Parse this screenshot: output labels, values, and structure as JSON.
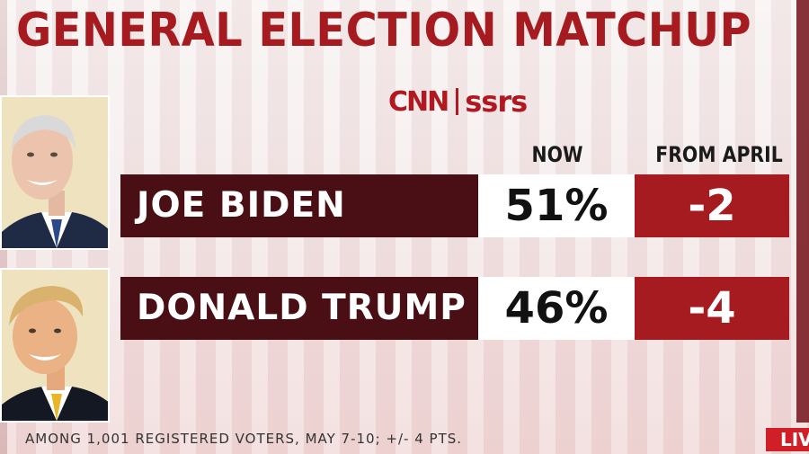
{
  "header": {
    "title": "GENERAL ELECTION MATCHUP"
  },
  "logo": {
    "left": "CNN",
    "right": "ssrs"
  },
  "columns": {
    "now": "NOW",
    "from": "FROM APRIL"
  },
  "candidates": [
    {
      "name": "JOE BIDEN",
      "now": "51%",
      "change": "-2"
    },
    {
      "name": "DONALD TRUMP",
      "now": "46%",
      "change": "-4"
    }
  ],
  "footer": {
    "note": "AMONG 1,001 REGISTERED VOTERS, MAY 7-10; +/- 4 PTS."
  },
  "badge": {
    "live": "LIVE"
  },
  "colors": {
    "title": "#a51b1f",
    "name_box": "#4a0f14",
    "change_box": "#a61b20",
    "live": "#d01f27"
  }
}
